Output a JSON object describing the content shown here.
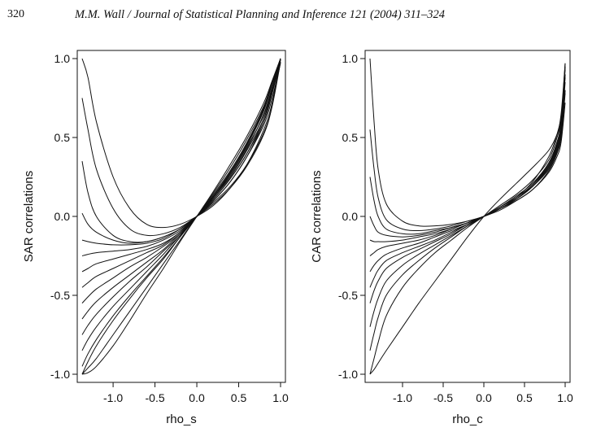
{
  "header": {
    "page_number": "320",
    "running_head": "M.M. Wall / Journal of Statistical Planning and Inference 121 (2004) 311–324"
  },
  "colors": {
    "ink": "#111111",
    "background": "#ffffff"
  },
  "chart_data": [
    {
      "type": "line",
      "title": "",
      "xlabel": "rho_s",
      "ylabel": "SAR correlations",
      "xlim": [
        -1.37,
        1.0
      ],
      "ylim": [
        -1.0,
        1.0
      ],
      "x_ticks": [
        "-1.0",
        "-0.5",
        "0.0",
        "0.5",
        "1.0"
      ],
      "y_ticks": [
        "-1.0",
        "-0.5",
        "0.0",
        "0.5",
        "1.0"
      ],
      "grid": false,
      "legend": "none",
      "series_family": "correlation curves for pairs of sites, one curve per pair, all passing through (0,0)",
      "x": [
        -1.37,
        -1.3,
        -1.2,
        -1.0,
        -0.8,
        -0.6,
        -0.4,
        -0.2,
        0.0,
        0.2,
        0.4,
        0.6,
        0.8,
        0.9,
        1.0
      ],
      "series": [
        {
          "values": [
            1.0,
            0.88,
            0.6,
            0.25,
            0.05,
            -0.05,
            -0.07,
            -0.05,
            0.0,
            0.07,
            0.18,
            0.33,
            0.55,
            0.72,
            1.0
          ]
        },
        {
          "values": [
            0.75,
            0.55,
            0.3,
            0.05,
            -0.08,
            -0.12,
            -0.11,
            -0.07,
            0.0,
            0.08,
            0.18,
            0.32,
            0.52,
            0.7,
            1.0
          ]
        },
        {
          "values": [
            0.35,
            0.15,
            0.0,
            -0.12,
            -0.16,
            -0.16,
            -0.13,
            -0.08,
            0.0,
            0.09,
            0.19,
            0.33,
            0.53,
            0.7,
            0.98
          ]
        },
        {
          "values": [
            0.02,
            -0.05,
            -0.1,
            -0.15,
            -0.17,
            -0.16,
            -0.13,
            -0.08,
            0.0,
            0.1,
            0.22,
            0.38,
            0.6,
            0.78,
            1.0
          ]
        },
        {
          "values": [
            -0.15,
            -0.16,
            -0.17,
            -0.18,
            -0.18,
            -0.17,
            -0.14,
            -0.08,
            0.0,
            0.1,
            0.22,
            0.38,
            0.58,
            0.75,
            0.97
          ]
        },
        {
          "values": [
            -0.25,
            -0.24,
            -0.23,
            -0.22,
            -0.21,
            -0.19,
            -0.15,
            -0.09,
            0.0,
            0.11,
            0.24,
            0.4,
            0.62,
            0.8,
            1.0
          ]
        },
        {
          "values": [
            -0.35,
            -0.33,
            -0.3,
            -0.27,
            -0.24,
            -0.21,
            -0.17,
            -0.1,
            0.0,
            0.11,
            0.24,
            0.4,
            0.6,
            0.78,
            0.98
          ]
        },
        {
          "values": [
            -0.45,
            -0.42,
            -0.38,
            -0.33,
            -0.28,
            -0.23,
            -0.18,
            -0.1,
            0.0,
            0.12,
            0.26,
            0.43,
            0.65,
            0.82,
            1.0
          ]
        },
        {
          "values": [
            -0.55,
            -0.51,
            -0.46,
            -0.39,
            -0.32,
            -0.26,
            -0.19,
            -0.11,
            0.0,
            0.12,
            0.25,
            0.42,
            0.62,
            0.8,
            0.99
          ]
        },
        {
          "values": [
            -0.65,
            -0.6,
            -0.54,
            -0.45,
            -0.37,
            -0.29,
            -0.21,
            -0.11,
            0.0,
            0.12,
            0.27,
            0.45,
            0.67,
            0.84,
            1.0
          ]
        },
        {
          "values": [
            -0.75,
            -0.69,
            -0.62,
            -0.51,
            -0.41,
            -0.32,
            -0.22,
            -0.12,
            0.0,
            0.13,
            0.27,
            0.44,
            0.64,
            0.81,
            0.99
          ]
        },
        {
          "values": [
            -0.85,
            -0.78,
            -0.7,
            -0.57,
            -0.46,
            -0.35,
            -0.24,
            -0.12,
            0.0,
            0.13,
            0.28,
            0.46,
            0.68,
            0.85,
            1.0
          ]
        },
        {
          "values": [
            -0.95,
            -0.87,
            -0.78,
            -0.63,
            -0.5,
            -0.38,
            -0.26,
            -0.13,
            0.0,
            0.13,
            0.28,
            0.46,
            0.68,
            0.84,
            1.0
          ]
        },
        {
          "values": [
            -1.0,
            -0.92,
            -0.82,
            -0.66,
            -0.52,
            -0.39,
            -0.27,
            -0.13,
            0.0,
            0.14,
            0.29,
            0.47,
            0.69,
            0.85,
            1.0
          ]
        },
        {
          "values": [
            -1.0,
            -0.99,
            -0.95,
            -0.82,
            -0.66,
            -0.49,
            -0.33,
            -0.16,
            0.0,
            0.16,
            0.33,
            0.51,
            0.72,
            0.86,
            1.0
          ]
        },
        {
          "values": [
            -1.0,
            -0.96,
            -0.9,
            -0.75,
            -0.6,
            -0.45,
            -0.3,
            -0.15,
            0.0,
            0.15,
            0.31,
            0.49,
            0.7,
            0.85,
            1.0
          ]
        }
      ]
    },
    {
      "type": "line",
      "title": "",
      "xlabel": "rho_c",
      "ylabel": "CAR correlations",
      "xlim": [
        -1.4,
        1.0
      ],
      "ylim": [
        -1.0,
        1.0
      ],
      "x_ticks": [
        "-1.0",
        "-0.5",
        "0.0",
        "0.5",
        "1.0"
      ],
      "y_ticks": [
        "-1.0",
        "-0.5",
        "0.0",
        "0.5",
        "1.0"
      ],
      "grid": false,
      "legend": "none",
      "series_family": "correlation curves for pairs of sites, one curve per pair, all passing through (0,0)",
      "x": [
        -1.4,
        -1.35,
        -1.3,
        -1.2,
        -1.0,
        -0.8,
        -0.6,
        -0.4,
        -0.2,
        0.0,
        0.2,
        0.4,
        0.6,
        0.8,
        0.9,
        0.95,
        1.0
      ],
      "series": [
        {
          "values": [
            1.0,
            0.6,
            0.3,
            0.08,
            -0.03,
            -0.06,
            -0.06,
            -0.05,
            -0.03,
            0.0,
            0.05,
            0.12,
            0.22,
            0.38,
            0.52,
            0.65,
            0.97
          ]
        },
        {
          "values": [
            0.55,
            0.3,
            0.12,
            -0.02,
            -0.08,
            -0.09,
            -0.08,
            -0.06,
            -0.03,
            0.0,
            0.05,
            0.11,
            0.2,
            0.34,
            0.47,
            0.58,
            0.9
          ]
        },
        {
          "values": [
            0.25,
            0.1,
            0.0,
            -0.08,
            -0.11,
            -0.11,
            -0.09,
            -0.07,
            -0.04,
            0.0,
            0.05,
            0.11,
            0.19,
            0.31,
            0.42,
            0.52,
            0.8
          ]
        },
        {
          "values": [
            0.0,
            -0.06,
            -0.1,
            -0.12,
            -0.13,
            -0.12,
            -0.1,
            -0.07,
            -0.04,
            0.0,
            0.04,
            0.1,
            0.17,
            0.28,
            0.38,
            0.47,
            0.72
          ]
        },
        {
          "values": [
            -0.15,
            -0.16,
            -0.16,
            -0.16,
            -0.15,
            -0.13,
            -0.11,
            -0.08,
            -0.04,
            0.0,
            0.05,
            0.11,
            0.19,
            0.32,
            0.45,
            0.57,
            0.9
          ]
        },
        {
          "values": [
            -0.25,
            -0.23,
            -0.21,
            -0.19,
            -0.17,
            -0.15,
            -0.12,
            -0.08,
            -0.04,
            0.0,
            0.05,
            0.1,
            0.17,
            0.29,
            0.4,
            0.5,
            0.78
          ]
        },
        {
          "values": [
            -0.35,
            -0.31,
            -0.28,
            -0.24,
            -0.2,
            -0.17,
            -0.13,
            -0.09,
            -0.05,
            0.0,
            0.05,
            0.11,
            0.19,
            0.31,
            0.43,
            0.54,
            0.85
          ]
        },
        {
          "values": [
            -0.45,
            -0.39,
            -0.34,
            -0.28,
            -0.23,
            -0.19,
            -0.15,
            -0.1,
            -0.05,
            0.0,
            0.05,
            0.11,
            0.19,
            0.3,
            0.41,
            0.51,
            0.8
          ]
        },
        {
          "values": [
            -0.55,
            -0.47,
            -0.41,
            -0.33,
            -0.26,
            -0.21,
            -0.16,
            -0.11,
            -0.05,
            0.0,
            0.06,
            0.12,
            0.2,
            0.33,
            0.46,
            0.58,
            0.93
          ]
        },
        {
          "values": [
            -0.7,
            -0.6,
            -0.52,
            -0.41,
            -0.31,
            -0.24,
            -0.18,
            -0.12,
            -0.06,
            0.0,
            0.06,
            0.12,
            0.2,
            0.32,
            0.44,
            0.55,
            0.88
          ]
        },
        {
          "values": [
            -0.85,
            -0.74,
            -0.64,
            -0.5,
            -0.37,
            -0.28,
            -0.2,
            -0.13,
            -0.06,
            0.0,
            0.06,
            0.13,
            0.21,
            0.34,
            0.47,
            0.6,
            0.95
          ]
        },
        {
          "values": [
            -1.0,
            -0.9,
            -0.8,
            -0.63,
            -0.45,
            -0.33,
            -0.23,
            -0.15,
            -0.07,
            0.0,
            0.07,
            0.14,
            0.23,
            0.36,
            0.5,
            0.62,
            0.97
          ]
        },
        {
          "values": [
            -1.0,
            -0.97,
            -0.93,
            -0.85,
            -0.7,
            -0.55,
            -0.41,
            -0.27,
            -0.13,
            0.0,
            0.11,
            0.21,
            0.31,
            0.42,
            0.52,
            0.62,
            0.95
          ]
        }
      ]
    }
  ]
}
